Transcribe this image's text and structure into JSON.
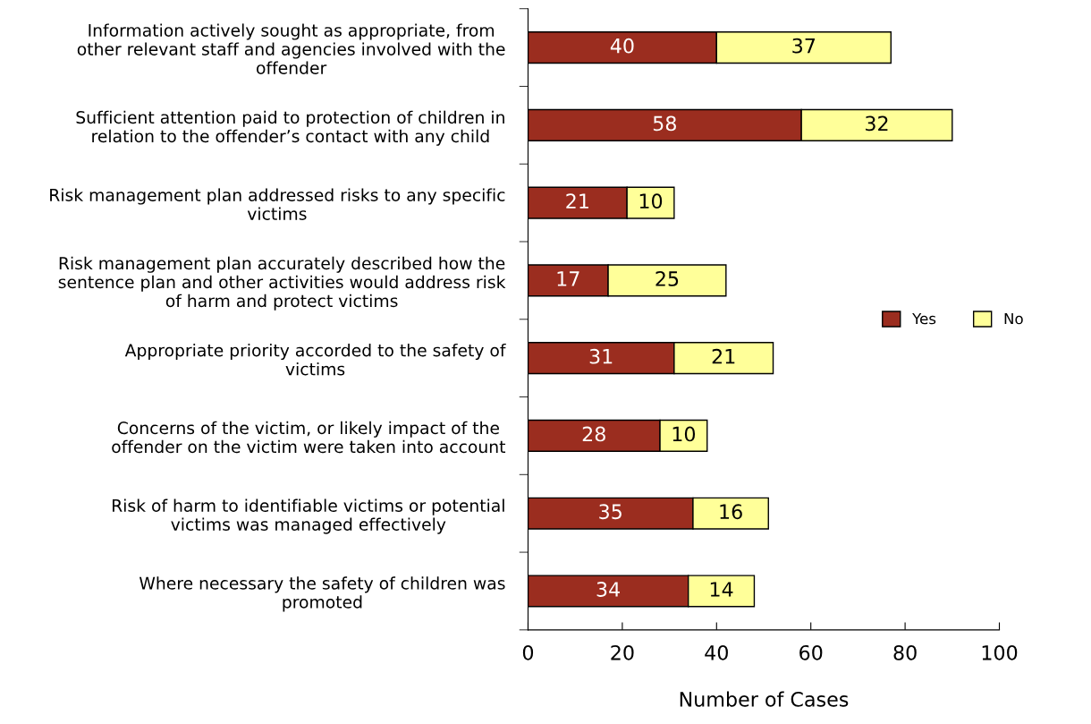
{
  "chart_data": {
    "type": "bar",
    "orientation": "horizontal",
    "stacked": true,
    "xlabel": "Number of Cases",
    "categories": [
      "Information actively sought as appropriate, from\nother relevant staff and agencies involved with the\noffender",
      "Sufficient attention paid to protection of children in\nrelation to the offender’s contact with any child",
      "Risk management plan addressed risks to any specific\nvictims",
      "Risk management plan accurately described how the\nsentence plan and other activities would address risk\nof harm and protect victims",
      "Appropriate priority accorded to the safety of\nvictims",
      "Concerns of the victim, or likely impact of the\noffender on the victim were taken into account",
      "Risk of harm to identifiable victims or potential\nvictims was managed effectively",
      "Where necessary the safety of children was\npromoted"
    ],
    "series": [
      {
        "name": "Yes",
        "color": "#9b2d1f",
        "values": [
          40,
          58,
          21,
          17,
          31,
          28,
          35,
          34
        ]
      },
      {
        "name": "No",
        "color": "#ffff99",
        "values": [
          37,
          32,
          10,
          25,
          21,
          10,
          16,
          14
        ]
      }
    ],
    "xlim": [
      0,
      100
    ],
    "xticks": [
      0,
      20,
      40,
      60,
      80,
      100
    ],
    "data_labels": true,
    "legend": "right",
    "grid": false
  }
}
